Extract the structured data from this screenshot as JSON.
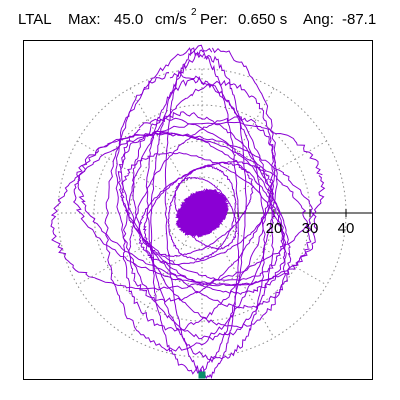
{
  "header": {
    "station": "LTAL",
    "max_label": "Max:",
    "max_value": "45.0",
    "max_unit": "cm/s",
    "max_unit_exp": "2",
    "period_label": "Per:",
    "period_value": "0.650 s",
    "angle_label": "Ang:",
    "angle_value": "-87.1"
  },
  "colors": {
    "trace": "#8a00d4",
    "grid": "#8a8a8a",
    "axis": "#000000",
    "marker": "#0a8f6b"
  },
  "chart_data": {
    "type": "scatter",
    "title": "LTAL Max: 45.0 cm/s2 Per: 0.650 s Ang: -87.1",
    "coordinate_system": "polar",
    "radial_ticks": [
      10,
      20,
      30,
      40
    ],
    "tick_labels": [
      "20",
      "30",
      "40"
    ],
    "radial_max": 40,
    "grid": true,
    "grid_style": "dotted",
    "trace_color": "#8a00d4",
    "peak_point": {
      "x": 0.0,
      "y": -45.0
    },
    "trajectory_orbits": [
      {
        "a": 20,
        "b": 12,
        "theta": 28,
        "cx": 1,
        "cy": 0
      },
      {
        "a": 28,
        "b": 16,
        "theta": 58,
        "cx": 0,
        "cy": 1
      },
      {
        "a": 35,
        "b": 19,
        "theta": 74,
        "cx": -1,
        "cy": 2
      },
      {
        "a": 42,
        "b": 23,
        "theta": 82,
        "cx": -3,
        "cy": 4
      },
      {
        "a": 37,
        "b": 21,
        "theta": 101,
        "cx": -2,
        "cy": 2
      },
      {
        "a": 30,
        "b": 18,
        "theta": 128,
        "cx": 1,
        "cy": 0
      },
      {
        "a": 24,
        "b": 15,
        "theta": 150,
        "cx": 0,
        "cy": -1
      },
      {
        "a": 34,
        "b": 20,
        "theta": 166,
        "cx": -2,
        "cy": 1
      },
      {
        "a": 38,
        "b": 22,
        "theta": 13,
        "cx": -4,
        "cy": 2
      },
      {
        "a": 33,
        "b": 19,
        "theta": -19,
        "cx": -2,
        "cy": 1
      },
      {
        "a": 27,
        "b": 17,
        "theta": -43,
        "cx": 0,
        "cy": 0
      },
      {
        "a": 31,
        "b": 19,
        "theta": -68,
        "cx": 2,
        "cy": -2
      },
      {
        "a": 44,
        "b": 13,
        "theta": 88,
        "cx": -1,
        "cy": 0
      },
      {
        "a": 39,
        "b": 16,
        "theta": 95,
        "cx": 1,
        "cy": -2
      },
      {
        "a": 45,
        "b": 10,
        "theta": 92,
        "cx": 0,
        "cy": 0
      },
      {
        "a": 17,
        "b": 10,
        "theta": 36,
        "cx": -1,
        "cy": 1
      },
      {
        "a": 13,
        "b": 9,
        "theta": 76,
        "cx": 0,
        "cy": 0
      },
      {
        "a": 11,
        "b": 7,
        "theta": 125,
        "cx": 1,
        "cy": 0
      }
    ],
    "dense_core": {
      "cx": 0,
      "cy": 0,
      "rx": 8,
      "ry": 6,
      "theta": 35,
      "count": 260
    }
  }
}
